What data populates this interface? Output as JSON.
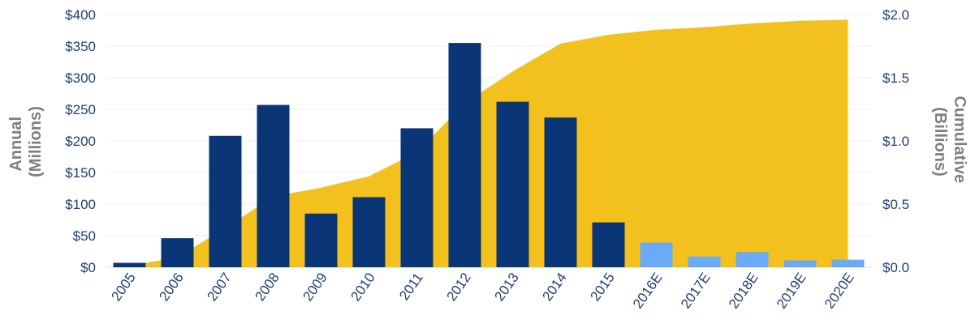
{
  "chart_data": {
    "type": "bar",
    "title": "",
    "categories": [
      "2005",
      "2006",
      "2007",
      "2008",
      "2009",
      "2010",
      "2011",
      "2012",
      "2013",
      "2014",
      "2015",
      "2016E",
      "2017E",
      "2018E",
      "2019E",
      "2020E"
    ],
    "series": [
      {
        "axis": "left",
        "type": "bar",
        "values": [
          7,
          46,
          208,
          257,
          85,
          111,
          220,
          355,
          262,
          237,
          71,
          39,
          17,
          24,
          11,
          12
        ],
        "colors": [
          "#0a3577",
          "#0a3577",
          "#0a3577",
          "#0a3577",
          "#0a3577",
          "#0a3577",
          "#0a3577",
          "#0a3577",
          "#0a3577",
          "#0a3577",
          "#0a3577",
          "#6aaaf7",
          "#6aaaf7",
          "#6aaaf7",
          "#6aaaf7",
          "#6aaaf7"
        ]
      },
      {
        "axis": "right",
        "type": "area",
        "color": "#f2c11d",
        "values": [
          0.01,
          0.08,
          0.31,
          0.56,
          0.63,
          0.72,
          0.91,
          1.3,
          1.55,
          1.77,
          1.84,
          1.88,
          1.9,
          1.93,
          1.95,
          1.96
        ]
      }
    ],
    "y_left": {
      "label_lines": [
        "Annual",
        "(Millions)"
      ],
      "ylim": [
        0,
        400
      ],
      "ticks": [
        0,
        50,
        100,
        150,
        200,
        250,
        300,
        350,
        400
      ],
      "tick_labels": [
        "$0",
        "$50",
        "$100",
        "$150",
        "$200",
        "$250",
        "$300",
        "$350",
        "$400"
      ]
    },
    "y_right": {
      "label_lines": [
        "Cumulative",
        "(Billions)"
      ],
      "ylim": [
        0,
        2.0
      ],
      "ticks": [
        0,
        0.5,
        1.0,
        1.5,
        2.0
      ],
      "tick_labels": [
        "$0.0",
        "$0.5",
        "$1.0",
        "$1.5",
        "$2.0"
      ]
    },
    "grid": true,
    "legend": "none"
  }
}
